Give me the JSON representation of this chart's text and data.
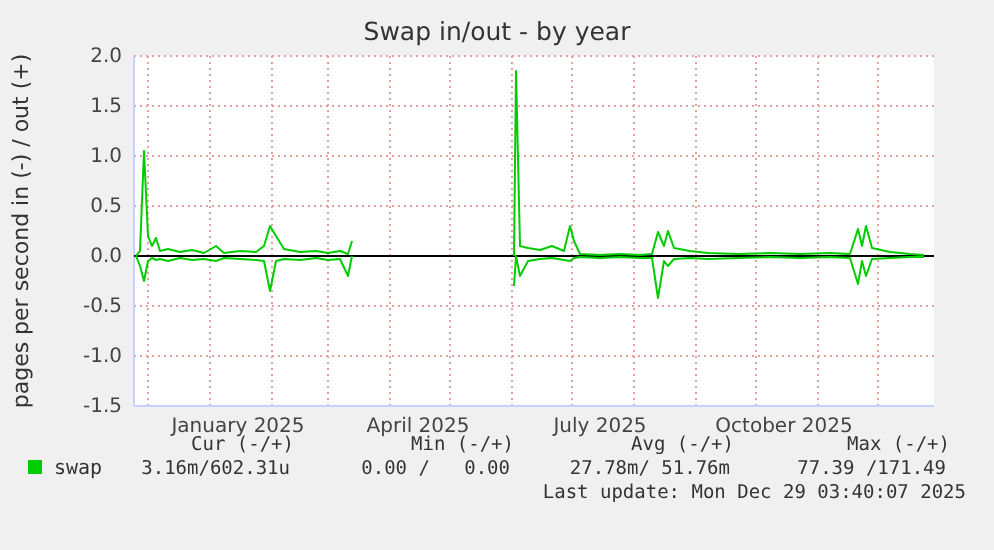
{
  "chart_data": {
    "type": "line",
    "title": "Swap in/out - by year",
    "ylabel": "pages per second in (-) / out (+)",
    "x": [
      "2024-11-25",
      "2024-11-27",
      "2024-11-29",
      "2024-12-01",
      "2024-12-03",
      "2024-12-05",
      "2024-12-07",
      "2024-12-11",
      "2024-12-17",
      "2024-12-23",
      "2024-12-29",
      "2025-01-04",
      "2025-01-08",
      "2025-01-16",
      "2025-01-24",
      "2025-01-28",
      "2025-01-31",
      "2025-02-03",
      "2025-02-07",
      "2025-02-15",
      "2025-02-23",
      "2025-03-01",
      "2025-03-07",
      "2025-03-11",
      "2025-03-13",
      "2025-04-15",
      "2025-06-02",
      "2025-06-03",
      "2025-06-05",
      "2025-06-09",
      "2025-06-15",
      "2025-06-21",
      "2025-06-27",
      "2025-06-30",
      "2025-07-02",
      "2025-07-05",
      "2025-07-15",
      "2025-07-25",
      "2025-08-04",
      "2025-08-10",
      "2025-08-13",
      "2025-08-16",
      "2025-08-18",
      "2025-08-21",
      "2025-08-29",
      "2025-09-07",
      "2025-09-22",
      "2025-10-08",
      "2025-10-23",
      "2025-11-07",
      "2025-11-17",
      "2025-11-21",
      "2025-11-23",
      "2025-11-25",
      "2025-11-28",
      "2025-12-07",
      "2025-12-17",
      "2025-12-24"
    ],
    "series": [
      {
        "name": "swap",
        "color": "#00cc00",
        "values": [
          0,
          0.05,
          1.05,
          0.2,
          0.1,
          0.18,
          0.05,
          0.07,
          0.04,
          0.06,
          0.03,
          0.1,
          0.03,
          0.05,
          0.04,
          0.1,
          0.3,
          0.2,
          0.07,
          0.04,
          0.05,
          0.03,
          0.05,
          0.02,
          0.15,
          null,
          0,
          1.85,
          0.1,
          0.08,
          0.06,
          0.1,
          0.05,
          0.3,
          0.15,
          0.02,
          0.01,
          0.02,
          0.01,
          0.02,
          0.24,
          0.1,
          0.25,
          0.08,
          0.05,
          0.03,
          0.02,
          0.03,
          0.02,
          0.03,
          0.02,
          0.27,
          0.1,
          0.3,
          0.08,
          0.04,
          0.02,
          0.01
        ]
      },
      {
        "color": "#00cc00",
        "values": [
          0,
          -0.1,
          -0.25,
          -0.05,
          -0.02,
          -0.04,
          -0.03,
          -0.05,
          -0.02,
          -0.04,
          -0.03,
          -0.05,
          -0.02,
          -0.03,
          -0.04,
          -0.05,
          -0.35,
          -0.05,
          -0.03,
          -0.04,
          -0.02,
          -0.04,
          -0.03,
          -0.2,
          0,
          null,
          -0.3,
          0,
          -0.2,
          -0.05,
          -0.03,
          -0.02,
          -0.04,
          -0.05,
          -0.02,
          -0.01,
          -0.02,
          -0.01,
          -0.02,
          -0.02,
          -0.42,
          -0.05,
          -0.1,
          -0.03,
          -0.02,
          -0.03,
          -0.02,
          -0.01,
          -0.02,
          -0.01,
          -0.02,
          -0.28,
          -0.05,
          -0.2,
          -0.03,
          -0.02,
          -0.01,
          -0.01
        ]
      }
    ],
    "xlim": [
      "2024-11-24",
      "2025-12-29"
    ],
    "xticks": [
      {
        "value": "2024-12-01",
        "label": null
      },
      {
        "value": "2025-01-01",
        "label": null
      },
      {
        "value": "2025-01-15",
        "label": "January 2025"
      },
      {
        "value": "2025-02-01",
        "label": null
      },
      {
        "value": "2025-03-01",
        "label": null
      },
      {
        "value": "2025-04-01",
        "label": null
      },
      {
        "value": "2025-04-15",
        "label": "April 2025"
      },
      {
        "value": "2025-05-01",
        "label": null
      },
      {
        "value": "2025-06-01",
        "label": null
      },
      {
        "value": "2025-07-01",
        "label": null
      },
      {
        "value": "2025-07-15",
        "label": "July 2025"
      },
      {
        "value": "2025-08-01",
        "label": null
      },
      {
        "value": "2025-09-01",
        "label": null
      },
      {
        "value": "2025-10-01",
        "label": null
      },
      {
        "value": "2025-10-15",
        "label": "October 2025"
      },
      {
        "value": "2025-11-01",
        "label": null
      },
      {
        "value": "2025-12-01",
        "label": null
      }
    ],
    "ylim": [
      -1.5,
      2.0
    ],
    "yticks": [
      {
        "value": -1.5,
        "label": "-1.5"
      },
      {
        "value": -1,
        "label": "-1.0"
      },
      {
        "value": -0.5,
        "label": "-0.5"
      },
      {
        "value": 0,
        "label": "0.0"
      },
      {
        "value": 0.5,
        "label": "0.5"
      },
      {
        "value": 1,
        "label": "1.0"
      },
      {
        "value": 1.5,
        "label": "1.5"
      },
      {
        "value": 2,
        "label": "2.0"
      }
    ],
    "grid": true,
    "legend": "bottom left",
    "line_style": "solid",
    "ref_lines": [
      {
        "axis": "y",
        "value": 0,
        "color": "#000000"
      }
    ],
    "annotations": [
      "Cur (-/+)",
      "Min (-/+)",
      "Avg (-/+)",
      "Max (-/+)",
      "3.16m/602.31u",
      "0.00 /   0.00",
      "27.78m/ 51.76m",
      "77.39 /171.49",
      "Last update: Mon Dec 29 03:40:07 2025"
    ]
  }
}
